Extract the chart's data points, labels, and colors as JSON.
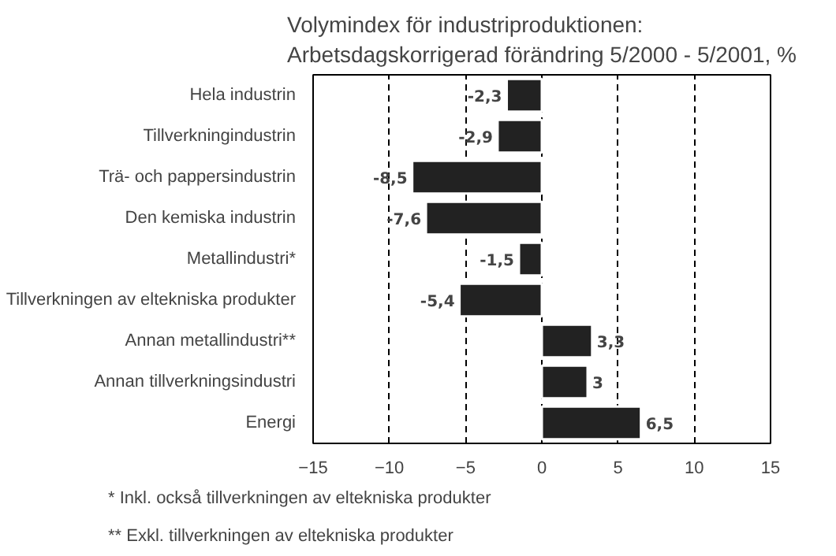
{
  "chart_data": {
    "type": "bar",
    "orientation": "horizontal",
    "title": "Volymindex för industriproduktionen:\nArbetsdagskorrigerad förändring 5/2000 - 5/2001, %",
    "categories": [
      "Hela industrin",
      "Tillverkningindustrin",
      "Trä- och pappersindustrin",
      "Den kemiska industrin",
      "Metallindustri*",
      "Tillverkningen av eltekniska produkter",
      "Annan metallindustri**",
      "Annan tillverkningsindustri",
      "Energi"
    ],
    "values": [
      -2.3,
      -2.9,
      -8.5,
      -7.6,
      -1.5,
      -5.4,
      3.3,
      3.0,
      6.5
    ],
    "value_labels": [
      "-2,3",
      "-2,9",
      "-8,5",
      "-7,6",
      "-1,5",
      "-5,4",
      "3,3",
      "3",
      "6,5"
    ],
    "color": "#222222",
    "xlim": [
      -15,
      15
    ],
    "xticks": [
      -15,
      -10,
      -5,
      0,
      5,
      10,
      15
    ],
    "grid": "x",
    "annotations": [
      "* Inkl. också tillverkningen av eltekniska produkter",
      "** Exkl. tillverkningen av eltekniska produkter"
    ]
  }
}
